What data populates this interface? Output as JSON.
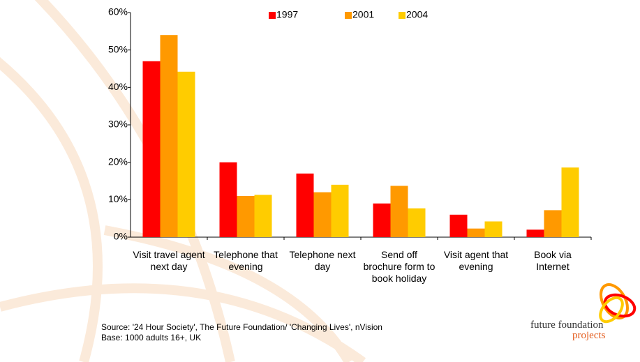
{
  "chart_data": {
    "type": "bar",
    "categories": [
      "Visit travel agent next day",
      "Telephone that evening",
      "Telephone next day",
      "Send off brochure form to book holiday",
      "Visit agent that evening",
      "Book via Internet"
    ],
    "series": [
      {
        "name": "1997",
        "color": "#ff0000",
        "values": [
          47,
          20,
          17,
          9,
          6,
          2
        ]
      },
      {
        "name": "2001",
        "color": "#ff9900",
        "values": [
          54,
          11,
          12,
          13.7,
          2.3,
          7.2
        ]
      },
      {
        "name": "2004",
        "color": "#ffcc00",
        "values": [
          44.2,
          11.3,
          14,
          7.7,
          4.2,
          18.6
        ]
      }
    ],
    "ylim": [
      0,
      60
    ],
    "yticks": [
      {
        "value": 0,
        "label": "0%"
      },
      {
        "value": 10,
        "label": "10%"
      },
      {
        "value": 20,
        "label": "20%"
      },
      {
        "value": 30,
        "label": "30%"
      },
      {
        "value": 40,
        "label": "40%"
      },
      {
        "value": 50,
        "label": "50%"
      },
      {
        "value": 60,
        "label": "60%"
      }
    ],
    "grid": false,
    "legend": "top"
  },
  "source": "Source: '24 Hour Society', The Future Foundation/ 'Changing Lives', nVision",
  "base": "Base: 1000 adults 16+, UK",
  "logo": {
    "line1": "future foundation",
    "line2": "projects"
  }
}
